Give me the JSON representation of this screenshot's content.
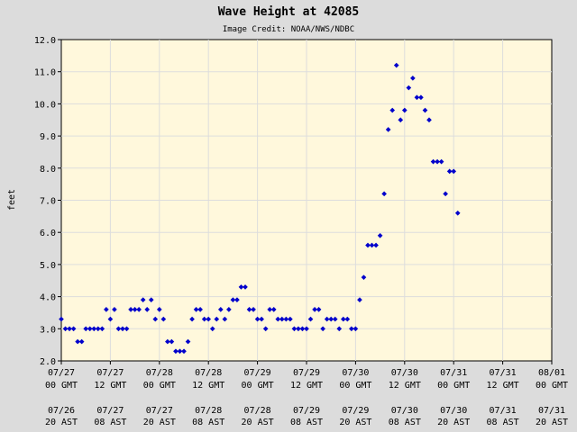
{
  "chart_data": {
    "type": "scatter",
    "title": "Wave Height at 42085",
    "subtitle": "Image Credit: NOAA/NWS/NDBC",
    "ylabel": "feet",
    "xlabel": "",
    "ylim": [
      2.0,
      12.0
    ],
    "y_ticks": [
      "2.0",
      "3.0",
      "4.0",
      "5.0",
      "6.0",
      "7.0",
      "8.0",
      "9.0",
      "10.0",
      "11.0",
      "12.0"
    ],
    "x_range_hours": [
      0,
      120
    ],
    "x_ticks": [
      {
        "h": 0,
        "date": "07/27",
        "gmt": "00 GMT",
        "ast_date": "07/26",
        "ast": "20 AST"
      },
      {
        "h": 12,
        "date": "07/27",
        "gmt": "12 GMT",
        "ast_date": "07/27",
        "ast": "08 AST"
      },
      {
        "h": 24,
        "date": "07/28",
        "gmt": "00 GMT",
        "ast_date": "07/27",
        "ast": "20 AST"
      },
      {
        "h": 36,
        "date": "07/28",
        "gmt": "12 GMT",
        "ast_date": "07/28",
        "ast": "08 AST"
      },
      {
        "h": 48,
        "date": "07/29",
        "gmt": "00 GMT",
        "ast_date": "07/28",
        "ast": "20 AST"
      },
      {
        "h": 60,
        "date": "07/29",
        "gmt": "12 GMT",
        "ast_date": "07/29",
        "ast": "08 AST"
      },
      {
        "h": 72,
        "date": "07/30",
        "gmt": "00 GMT",
        "ast_date": "07/29",
        "ast": "20 AST"
      },
      {
        "h": 84,
        "date": "07/30",
        "gmt": "12 GMT",
        "ast_date": "07/30",
        "ast": "08 AST"
      },
      {
        "h": 96,
        "date": "07/31",
        "gmt": "00 GMT",
        "ast_date": "07/30",
        "ast": "20 AST"
      },
      {
        "h": 108,
        "date": "07/31",
        "gmt": "12 GMT",
        "ast_date": "07/31",
        "ast": "08 AST"
      },
      {
        "h": 120,
        "date": "08/01",
        "gmt": "00 GMT",
        "ast_date": "07/31",
        "ast": "20 AST"
      }
    ],
    "grid": true,
    "colors": {
      "background": "#dcdcdc",
      "plot_area": "#fff8dc",
      "grid": "#dddddd",
      "marker": "#0000cc"
    },
    "series": [
      {
        "x_hours": [
          0,
          1,
          2,
          3,
          4,
          5,
          6,
          7,
          8,
          9,
          10,
          11,
          12,
          13,
          14,
          15,
          16,
          17,
          18,
          19,
          20,
          21,
          22,
          23,
          24,
          25,
          26,
          27,
          28,
          29,
          30,
          31,
          32,
          33,
          34,
          35,
          36,
          37,
          38,
          39,
          40,
          41,
          42,
          43,
          44,
          45,
          46,
          47,
          48,
          49,
          50,
          51,
          52,
          53,
          54,
          55,
          56,
          57,
          58,
          59,
          60,
          61,
          62,
          63,
          64,
          65,
          66,
          67,
          68,
          69,
          70,
          71,
          72,
          73,
          74,
          75,
          76,
          77,
          78,
          79,
          80,
          81,
          82,
          83,
          84,
          85,
          86,
          87,
          88,
          89,
          90,
          91,
          92,
          93,
          94,
          95,
          96,
          97
        ],
        "y": [
          3.3,
          3.0,
          3.0,
          3.0,
          2.6,
          2.6,
          3.0,
          3.0,
          3.0,
          3.0,
          3.0,
          3.6,
          3.3,
          3.6,
          3.0,
          3.0,
          3.0,
          3.6,
          3.6,
          3.6,
          3.9,
          3.6,
          3.9,
          3.3,
          3.6,
          3.3,
          2.6,
          2.6,
          2.3,
          2.3,
          2.3,
          2.6,
          3.3,
          3.6,
          3.6,
          3.3,
          3.3,
          3.0,
          3.3,
          3.6,
          3.3,
          3.6,
          3.9,
          3.9,
          4.3,
          4.3,
          3.6,
          3.6,
          3.3,
          3.3,
          3.0,
          3.6,
          3.6,
          3.3,
          3.3,
          3.3,
          3.3,
          3.0,
          3.0,
          3.0,
          3.0,
          3.3,
          3.6,
          3.6,
          3.0,
          3.3,
          3.3,
          3.3,
          3.0,
          3.3,
          3.3,
          3.0,
          3.0,
          3.9,
          4.6,
          5.6,
          5.6,
          5.6,
          5.9,
          7.2,
          9.2,
          9.8,
          11.2,
          9.5,
          9.8,
          10.5,
          10.8,
          10.2,
          10.2,
          9.8,
          9.5,
          8.2,
          8.2,
          8.2,
          7.2,
          7.9,
          7.9,
          6.6
        ]
      }
    ]
  }
}
